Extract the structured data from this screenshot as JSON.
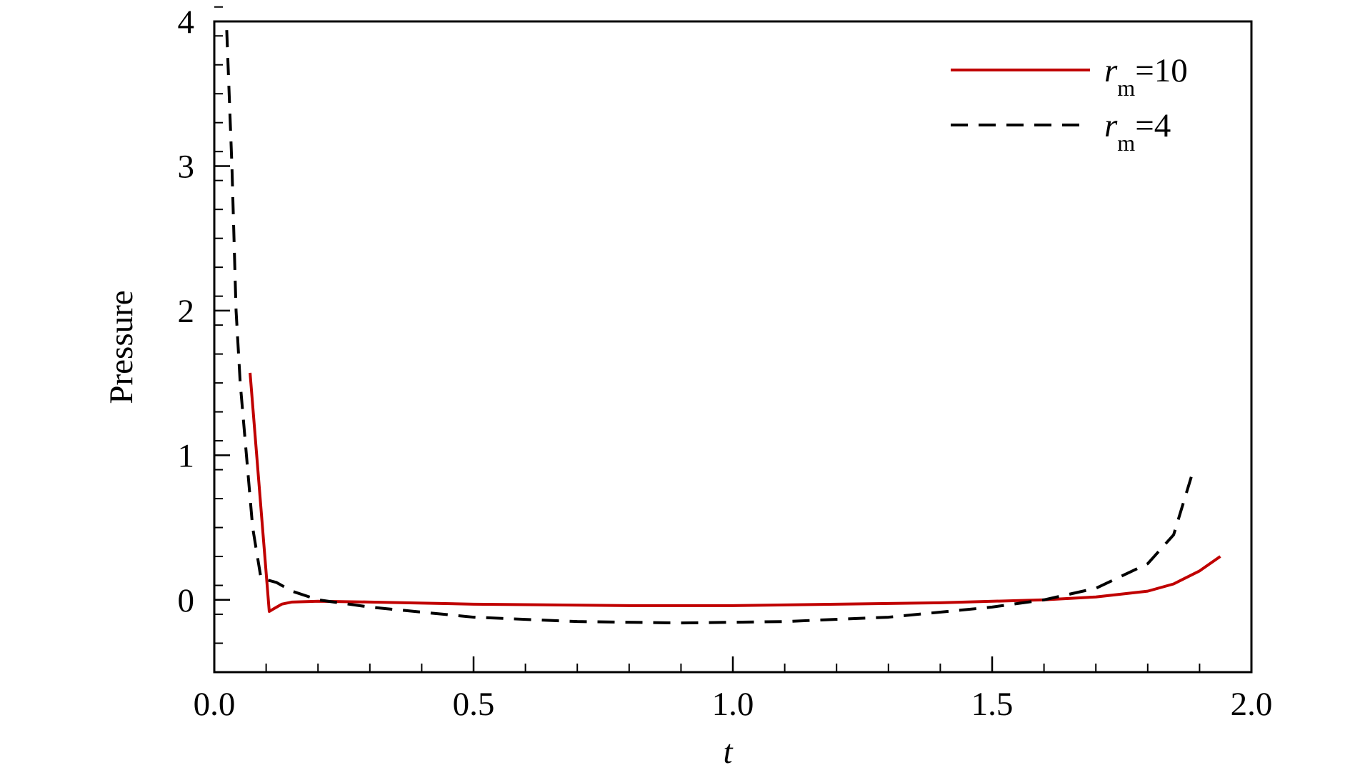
{
  "chart_data": {
    "type": "line",
    "xlabel": "t",
    "ylabel": "Pressure",
    "xlim": [
      0,
      2
    ],
    "ylim": [
      -0.5,
      4
    ],
    "xticks": [
      {
        "value": 0,
        "label": "0.0"
      },
      0.5,
      {
        "value": 1,
        "label": "1.0"
      },
      1.5,
      {
        "value": 2,
        "label": "2.0"
      }
    ],
    "yticks": [
      0,
      1,
      2,
      3,
      4
    ],
    "xminor_step": 0.1,
    "yminor_step": 0.2,
    "legend": "upper-right",
    "series": [
      {
        "name": "rm=10",
        "color": "#c00000",
        "dash": false,
        "x": [
          0.069,
          0.106,
          0.13,
          0.15,
          0.2,
          0.3,
          0.5,
          0.8,
          1.0,
          1.2,
          1.4,
          1.6,
          1.7,
          1.8,
          1.85,
          1.9,
          1.94
        ],
        "values": [
          1.57,
          -0.08,
          -0.03,
          -0.015,
          -0.01,
          -0.015,
          -0.03,
          -0.04,
          -0.04,
          -0.03,
          -0.02,
          0.0,
          0.02,
          0.06,
          0.11,
          0.2,
          0.3
        ]
      },
      {
        "name": "rm=4",
        "color": "#000000",
        "dash": true,
        "x": [
          0.024,
          0.034,
          0.042,
          0.05,
          0.062,
          0.074,
          0.09,
          0.12,
          0.15,
          0.2,
          0.3,
          0.5,
          0.7,
          0.9,
          1.1,
          1.3,
          1.5,
          1.6,
          1.7,
          1.8,
          1.85,
          1.884
        ],
        "values": [
          3.94,
          3.0,
          2.0,
          1.5,
          1.0,
          0.5,
          0.15,
          0.12,
          0.06,
          0.0,
          -0.05,
          -0.12,
          -0.15,
          -0.16,
          -0.15,
          -0.12,
          -0.05,
          0.0,
          0.08,
          0.25,
          0.45,
          0.85
        ]
      }
    ]
  }
}
